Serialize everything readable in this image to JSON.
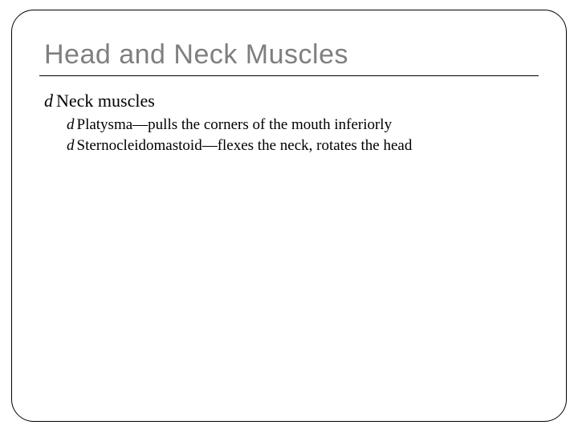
{
  "title": "Head and Neck Muscles",
  "bullet_glyph": "d",
  "bullets": {
    "b0": {
      "text": "Neck muscles"
    },
    "b1": {
      "text": "Platysma—pulls the corners of the mouth inferiorly"
    },
    "b2": {
      "text": "Sternocleidomastoid—flexes the neck, rotates the head"
    }
  },
  "page_number": "",
  "colors": {
    "title": "#7f7f7f",
    "text": "#000000",
    "border": "#000000",
    "pagenum": "#a6a6a6",
    "background": "#ffffff"
  },
  "fontsizes": {
    "title": 34,
    "level1": 22,
    "level2": 19
  }
}
